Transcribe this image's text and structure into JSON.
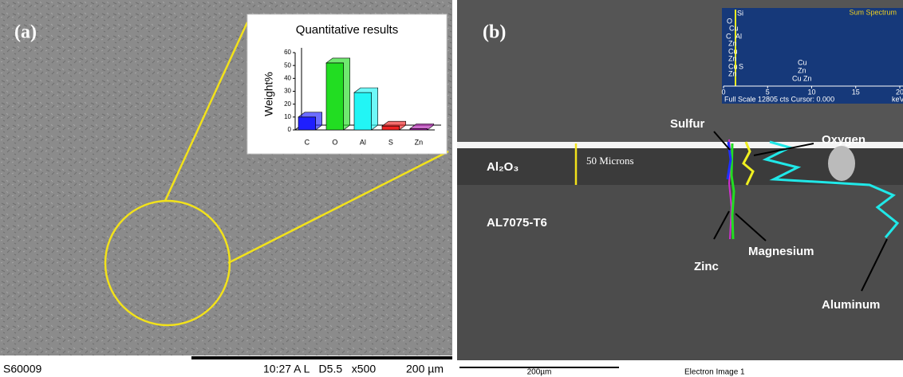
{
  "panel_a": {
    "label": "(a)",
    "footer": {
      "sample": "S60009",
      "info": "10:27 A L   D5.5   x500",
      "scale": "200 µm"
    },
    "inset": {
      "type": "bar",
      "title": "Quantitative results",
      "y_label": "Weight%",
      "categories": [
        "C",
        "O",
        "Al",
        "S",
        "Zn"
      ],
      "values": [
        10,
        52,
        29,
        3,
        1
      ],
      "colors": [
        "#1f1fff",
        "#22dd22",
        "#22f5f5",
        "#ee2222",
        "#b020b0"
      ],
      "ylim": [
        0,
        60
      ],
      "yticks": [
        0,
        10,
        20,
        30,
        40,
        50,
        60
      ]
    }
  },
  "panel_b": {
    "label": "(b)",
    "annotations": {
      "sulfur": "Sulfur",
      "oxygen": "Oxygen",
      "oxide": "Al₂O₃",
      "thickness": "50 Microns",
      "alloy": "AL7075-T6",
      "zinc": "Zinc",
      "magnesium": "Magnesium",
      "aluminum": "Aluminum"
    },
    "spectrum": {
      "title": "Sum Spectrum",
      "status": "Full Scale 12805 cts Cursor: 0.000",
      "x_unit": "keV",
      "xlim": [
        0,
        20
      ],
      "xticks": [
        0,
        5,
        10,
        15,
        20
      ],
      "peak_labels": [
        "Si",
        "O",
        "Cu",
        "C",
        "Al",
        "Zn",
        "Cu",
        "Zn",
        "Cu",
        "S",
        "Zn",
        "Cu",
        "Zn",
        "Cu Zn"
      ]
    },
    "footer": {
      "scale": "200µm",
      "caption": "Electron Image 1"
    }
  }
}
